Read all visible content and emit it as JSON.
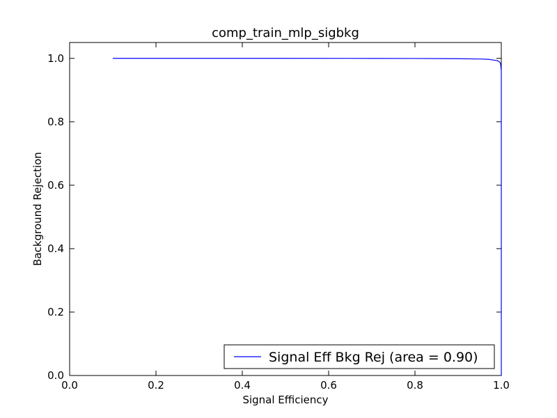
{
  "chart_data": {
    "type": "line",
    "title": "comp_train_mlp_sigbkg",
    "xlabel": "Signal Efficiency",
    "ylabel": "Background Rejection",
    "xlim": [
      0.0,
      1.0
    ],
    "ylim": [
      0.0,
      1.05
    ],
    "xticks": [
      "0.0",
      "0.2",
      "0.4",
      "0.6",
      "0.8",
      "1.0"
    ],
    "yticks": [
      "0.0",
      "0.2",
      "0.4",
      "0.6",
      "0.8",
      "1.0"
    ],
    "grid": false,
    "legend_position": "lower-right",
    "series": [
      {
        "name": "Signal Eff Bkg Rej (area = 0.90)",
        "color": "#0000ff",
        "x": [
          0.1,
          0.3,
          0.5,
          0.7,
          0.8,
          0.9,
          0.95,
          0.97,
          0.98,
          0.99,
          0.995,
          0.998,
          0.999,
          1.0,
          1.0,
          1.0
        ],
        "y": [
          1.0,
          1.0,
          1.0,
          0.9998,
          0.9996,
          0.999,
          0.998,
          0.997,
          0.995,
          0.993,
          0.99,
          0.985,
          0.975,
          0.96,
          0.5,
          0.0
        ]
      }
    ]
  }
}
